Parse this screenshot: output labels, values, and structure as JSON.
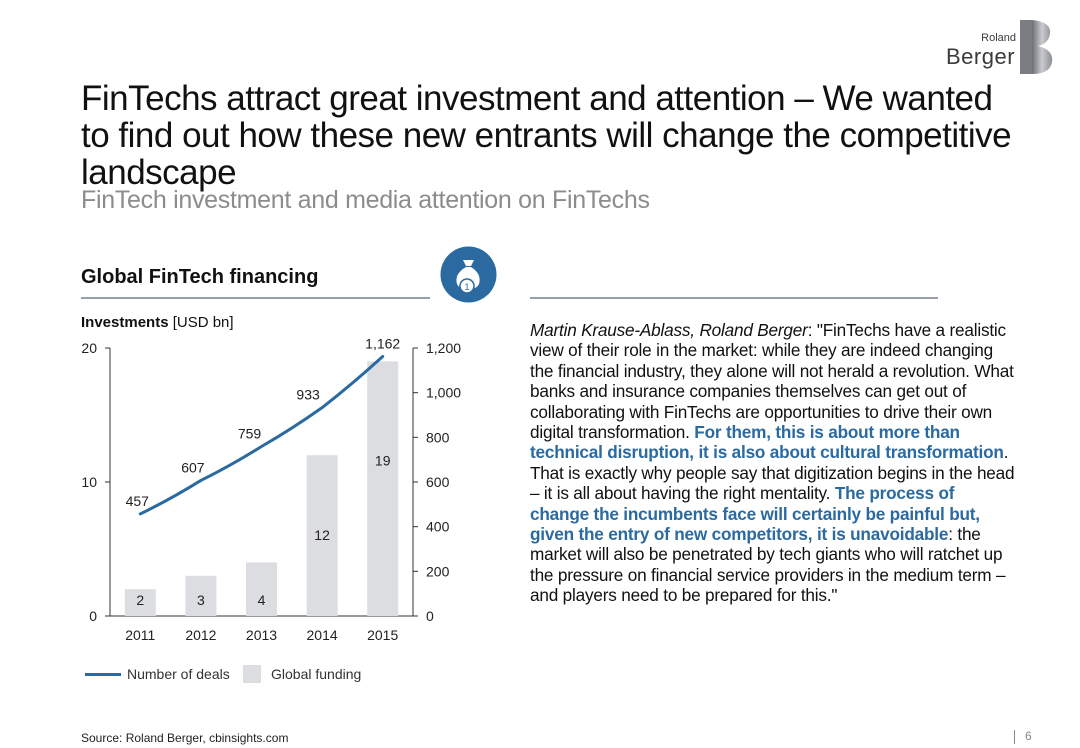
{
  "logo": {
    "line1": "Roland",
    "line2": "Berger"
  },
  "title": "FinTechs attract great investment and attention – We wanted to find out how these new entrants will change the competitive landscape",
  "subtitle": "FinTech investment and media attention on FinTechs",
  "section_title": "Global FinTech financing",
  "icon": "money-bag-icon",
  "investments_label": {
    "bold": "Investments",
    "unit": " [USD bn]"
  },
  "chart_data": {
    "type": "bar",
    "categories": [
      "2011",
      "2012",
      "2013",
      "2014",
      "2015"
    ],
    "series": [
      {
        "name": "Global funding",
        "type": "bar",
        "axis": "left",
        "values": [
          2,
          3,
          4,
          12,
          19
        ],
        "labels": [
          "2",
          "3",
          "4",
          "12",
          "19"
        ],
        "color": "#dcdde0"
      },
      {
        "name": "Number of deals",
        "type": "line",
        "axis": "right",
        "values": [
          457,
          607,
          759,
          933,
          1162
        ],
        "labels": [
          "457",
          "607",
          "759",
          "933",
          "1,162"
        ],
        "color": "#2a6aa0"
      }
    ],
    "y_left": {
      "range": [
        0,
        20
      ],
      "ticks": [
        "0",
        "10",
        "20"
      ]
    },
    "y_right": {
      "range": [
        0,
        1200
      ],
      "ticks": [
        "0",
        "200",
        "400",
        "600",
        "800",
        "1,000",
        "1,200"
      ]
    },
    "grid": false,
    "legend": "bottom"
  },
  "quote": {
    "author": "Martin Krause-Ablass, Roland Berger",
    "p1": ": \"FinTechs have a realistic view of their role in the market: while they are indeed changing the financial industry, they alone will not herald a revolution. What banks and insurance companies themselves can get out of collaborating with FinTechs are opportunities to drive their own digital transformation. ",
    "h1": "For them, this is about more than technical disruption, it is also about cultural transformation",
    "p2": ". That is exactly why people say that digitization begins in the head – it is all about having the right mentality. ",
    "h2": "The process of change the incumbents face will certainly be painful but, given the entry of new competitors, it is unavoidable",
    "p3": ": the market will also be penetrated by tech giants who will ratchet up the pressure on financial service providers in the medium term – and players need to be prepared for this.\""
  },
  "source": "Source: Roland Berger, cbinsights.com",
  "page_number": "6"
}
